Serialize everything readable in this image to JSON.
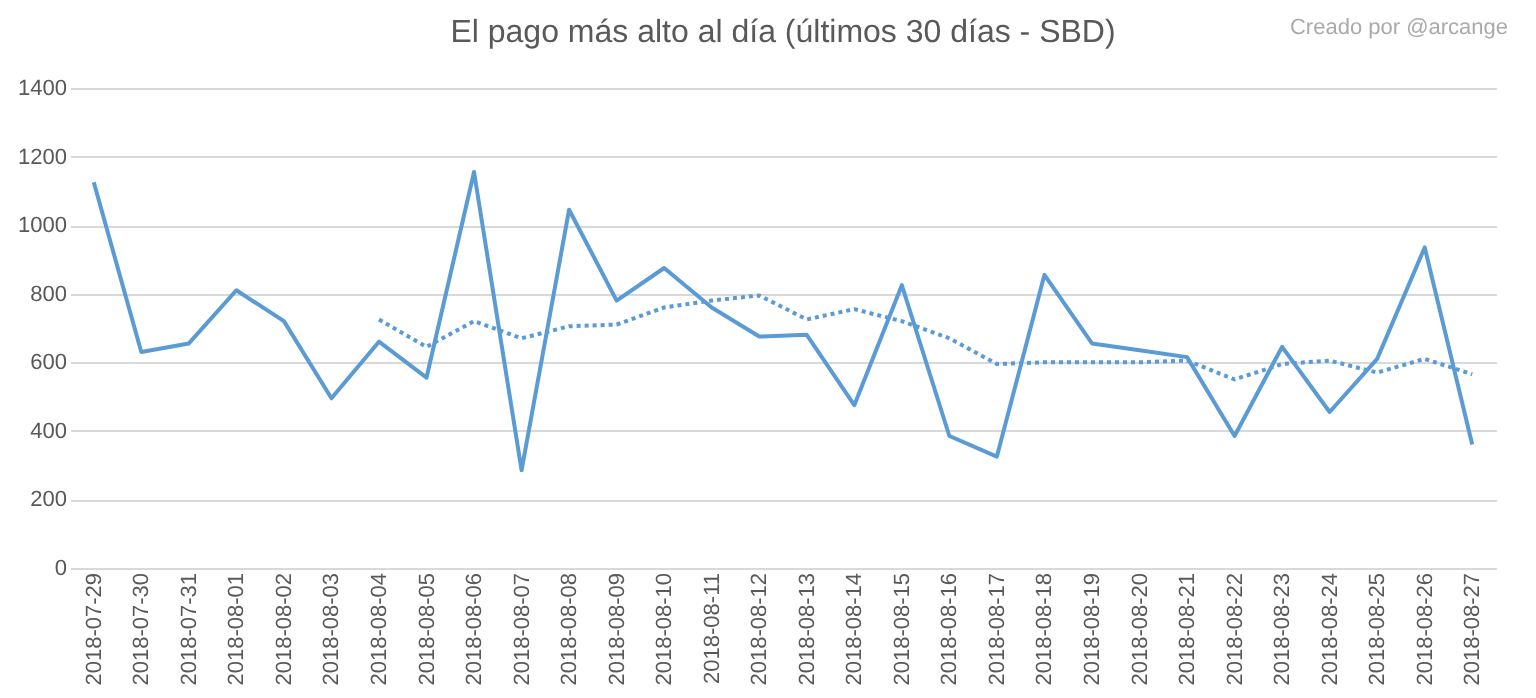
{
  "chart_data": {
    "type": "line",
    "title": "El pago más alto al día (últimos 30 días - SBD)",
    "annotations": [
      "Creado por @arcange"
    ],
    "categories": [
      "2018-07-29",
      "2018-07-30",
      "2018-07-31",
      "2018-08-01",
      "2018-08-02",
      "2018-08-03",
      "2018-08-04",
      "2018-08-05",
      "2018-08-06",
      "2018-08-07",
      "2018-08-08",
      "2018-08-09",
      "2018-08-10",
      "2018-08-11",
      "2018-08-12",
      "2018-08-13",
      "2018-08-14",
      "2018-08-15",
      "2018-08-16",
      "2018-08-17",
      "2018-08-18",
      "2018-08-19",
      "2018-08-20",
      "2018-08-21",
      "2018-08-22",
      "2018-08-23",
      "2018-08-24",
      "2018-08-25",
      "2018-08-26",
      "2018-08-27"
    ],
    "series": [
      {
        "color": "#5b9bd5",
        "line_style": "solid",
        "values": [
          1125,
          630,
          655,
          810,
          720,
          495,
          660,
          555,
          1155,
          285,
          1045,
          780,
          875,
          760,
          675,
          680,
          475,
          825,
          385,
          325,
          855,
          655,
          635,
          615,
          385,
          645,
          455,
          610,
          935,
          360
        ]
      },
      {
        "color": "#5b9bd5",
        "line_style": "dotted",
        "values": [
          null,
          null,
          null,
          null,
          null,
          null,
          725,
          645,
          720,
          670,
          705,
          710,
          760,
          780,
          795,
          725,
          755,
          720,
          670,
          595,
          600,
          600,
          600,
          605,
          550,
          595,
          605,
          570,
          610,
          565
        ]
      }
    ],
    "ylim": [
      0,
      1400
    ],
    "yticks": [
      0,
      200,
      400,
      600,
      800,
      1000,
      1200,
      1400
    ],
    "grid": "y",
    "legend": false,
    "marker": "none"
  }
}
